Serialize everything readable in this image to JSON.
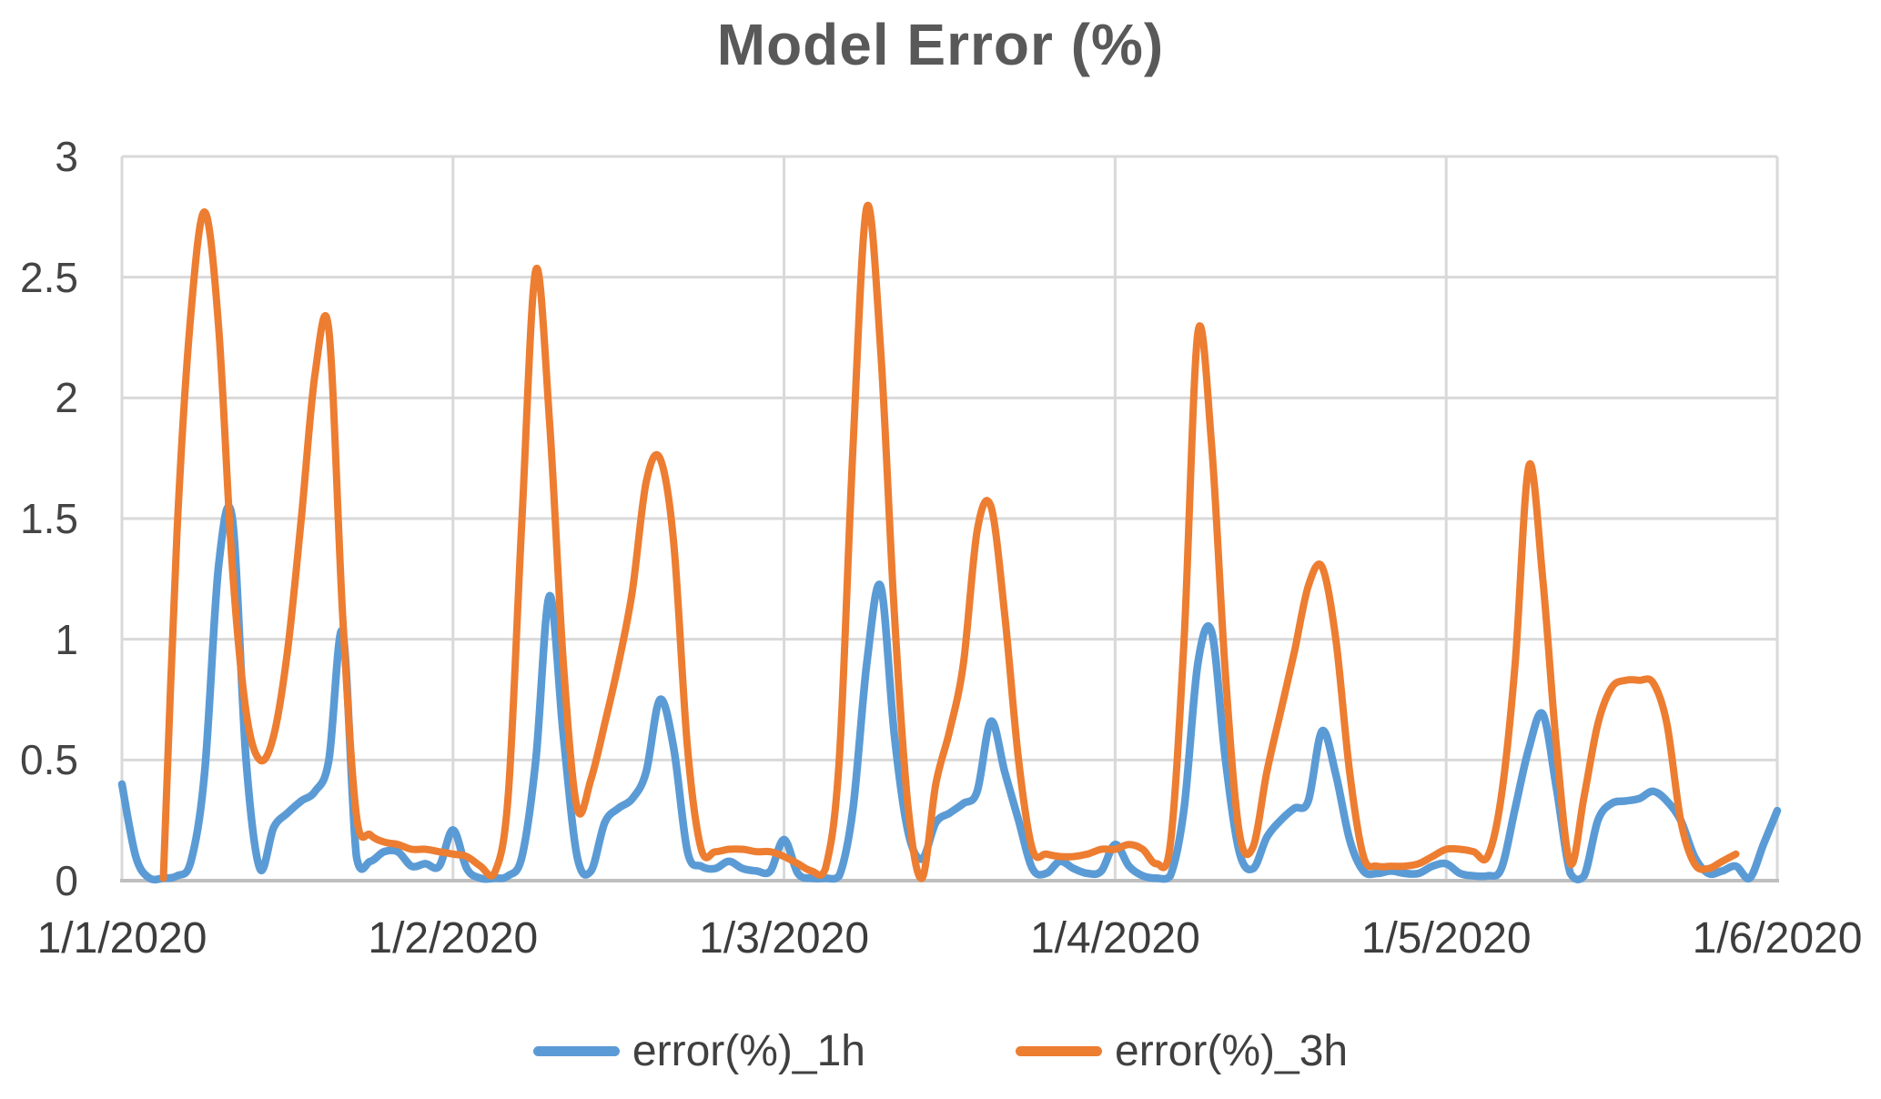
{
  "title": "Model Error (%)",
  "colors": {
    "series_1h": "#5B9BD5",
    "series_3h": "#ED7D31",
    "gridline": "#D9D9D9",
    "axis_line": "#BFBFBF",
    "title_text": "#595959",
    "tick_text": "#404040",
    "background": "#FFFFFF"
  },
  "chart_data": {
    "type": "line",
    "title": "Model Error (%)",
    "xlabel": "",
    "ylabel": "",
    "ylim": [
      0,
      3
    ],
    "grid": true,
    "legend_position": "bottom",
    "smooth_lines": true,
    "y_ticks": [
      0,
      0.5,
      1,
      1.5,
      2,
      2.5,
      3
    ],
    "y_tick_labels": [
      "0",
      "0.5",
      "1",
      "1.5",
      "2",
      "2.5",
      "3"
    ],
    "x_tick_labels": [
      "1/1/2020",
      "1/2/2020",
      "1/3/2020",
      "1/4/2020",
      "1/5/2020",
      "1/6/2020"
    ],
    "x_tick_hours": [
      0,
      24,
      48,
      72,
      96,
      120
    ],
    "x_unit": "hours, hourly samples starting 1/1/2020 00:00",
    "series": [
      {
        "name": "error(%)_1h",
        "color": "#5B9BD5",
        "start_hour": 0,
        "values": [
          0.4,
          0.1,
          0.01,
          0.01,
          0.02,
          0.08,
          0.45,
          1.3,
          1.5,
          0.5,
          0.05,
          0.22,
          0.28,
          0.33,
          0.37,
          0.5,
          1.03,
          0.1,
          0.08,
          0.12,
          0.12,
          0.06,
          0.07,
          0.06,
          0.21,
          0.05,
          0.01,
          0.01,
          0.02,
          0.1,
          0.5,
          1.18,
          0.6,
          0.1,
          0.04,
          0.24,
          0.3,
          0.34,
          0.45,
          0.75,
          0.55,
          0.12,
          0.06,
          0.05,
          0.08,
          0.05,
          0.04,
          0.04,
          0.17,
          0.03,
          0.01,
          0.01,
          0.02,
          0.3,
          0.9,
          1.22,
          0.6,
          0.2,
          0.09,
          0.24,
          0.28,
          0.32,
          0.37,
          0.66,
          0.45,
          0.25,
          0.05,
          0.03,
          0.08,
          0.05,
          0.03,
          0.04,
          0.15,
          0.06,
          0.02,
          0.01,
          0.02,
          0.3,
          0.9,
          1.03,
          0.5,
          0.12,
          0.05,
          0.18,
          0.25,
          0.3,
          0.33,
          0.62,
          0.44,
          0.17,
          0.04,
          0.03,
          0.04,
          0.03,
          0.03,
          0.06,
          0.07,
          0.03,
          0.02,
          0.02,
          0.05,
          0.3,
          0.55,
          0.69,
          0.38,
          0.03,
          0.02,
          0.25,
          0.32,
          0.33,
          0.34,
          0.37,
          0.33,
          0.25,
          0.1,
          0.03,
          0.04,
          0.06,
          0.01,
          0.15,
          0.29
        ]
      },
      {
        "name": "error(%)_3h",
        "color": "#ED7D31",
        "start_hour": 3,
        "values": [
          0.01,
          1.45,
          2.35,
          2.77,
          2.3,
          1.3,
          0.7,
          0.5,
          0.6,
          0.95,
          1.5,
          2.1,
          2.28,
          1.1,
          0.27,
          0.19,
          0.16,
          0.15,
          0.13,
          0.13,
          0.12,
          0.11,
          0.1,
          0.06,
          0.03,
          0.35,
          1.5,
          2.53,
          1.9,
          0.9,
          0.3,
          0.42,
          0.65,
          0.9,
          1.2,
          1.65,
          1.75,
          1.4,
          0.55,
          0.13,
          0.12,
          0.13,
          0.13,
          0.12,
          0.12,
          0.1,
          0.07,
          0.04,
          0.05,
          0.5,
          1.8,
          2.79,
          2.2,
          1.1,
          0.3,
          0.01,
          0.4,
          0.62,
          0.9,
          1.45,
          1.55,
          1.1,
          0.5,
          0.13,
          0.11,
          0.1,
          0.1,
          0.11,
          0.13,
          0.13,
          0.15,
          0.13,
          0.07,
          0.15,
          1.0,
          2.27,
          1.8,
          0.85,
          0.2,
          0.14,
          0.45,
          0.7,
          0.95,
          1.22,
          1.3,
          1.0,
          0.45,
          0.1,
          0.06,
          0.06,
          0.06,
          0.07,
          0.1,
          0.13,
          0.13,
          0.12,
          0.1,
          0.35,
          0.9,
          1.72,
          1.25,
          0.55,
          0.07,
          0.35,
          0.65,
          0.8,
          0.83,
          0.83,
          0.82,
          0.65,
          0.25,
          0.07,
          0.05,
          0.08,
          0.11
        ]
      }
    ]
  },
  "legend": {
    "items": [
      {
        "label": "error(%)_1h"
      },
      {
        "label": "error(%)_3h"
      }
    ]
  }
}
